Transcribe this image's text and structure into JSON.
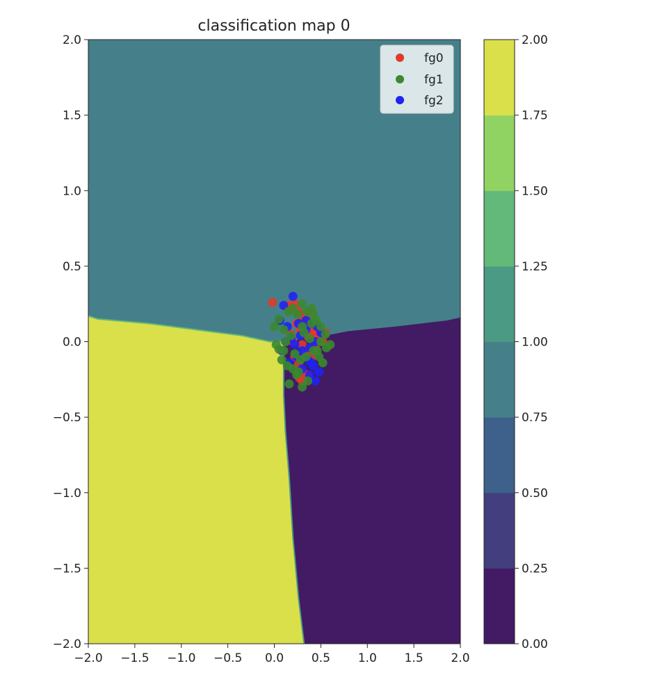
{
  "chart_data": {
    "type": "contourf+scatter",
    "title": "classification map 0",
    "xlabel": "",
    "ylabel": "",
    "xlim": [
      -2.0,
      2.0
    ],
    "ylim": [
      -2.0,
      2.0
    ],
    "x_ticks": [
      "−2.0",
      "−1.5",
      "−1.0",
      "−0.5",
      "0.0",
      "0.5",
      "1.0",
      "1.5",
      "2.0"
    ],
    "y_ticks": [
      "2.0",
      "1.5",
      "1.0",
      "0.5",
      "0.0",
      "−0.5",
      "−1.0",
      "−1.5",
      "−2.0"
    ],
    "grid": false,
    "legend_position": "top-right",
    "regions": [
      {
        "class": 1,
        "color": "#45808a",
        "region": "upper"
      },
      {
        "class": 2,
        "color": "#dae049",
        "region": "lower-left"
      },
      {
        "class": 0,
        "color": "#421b64",
        "region": "lower-right"
      }
    ],
    "boundary": {
      "upper_left": [
        [
          -2.0,
          0.17
        ],
        [
          -1.9,
          0.15
        ],
        [
          -1.35,
          0.12
        ],
        [
          -0.85,
          0.08
        ],
        [
          -0.35,
          0.04
        ],
        [
          -0.05,
          0.0
        ],
        [
          0.1,
          0.0
        ]
      ],
      "upper_right": [
        [
          0.15,
          0.0
        ],
        [
          0.3,
          0.02
        ],
        [
          0.55,
          0.04
        ],
        [
          0.8,
          0.07
        ],
        [
          1.3,
          0.1
        ],
        [
          1.85,
          0.14
        ],
        [
          2.0,
          0.16
        ]
      ],
      "lower": [
        [
          0.1,
          0.0
        ],
        [
          0.1,
          -0.35
        ],
        [
          0.12,
          -0.6
        ],
        [
          0.16,
          -0.9
        ],
        [
          0.2,
          -1.3
        ],
        [
          0.26,
          -1.7
        ],
        [
          0.32,
          -2.0
        ]
      ]
    },
    "colorbar": {
      "levels": [
        0.0,
        0.25,
        0.5,
        0.75,
        1.0,
        1.25,
        1.5,
        1.75,
        2.0
      ],
      "tick_labels": [
        "2.00",
        "1.75",
        "1.50",
        "1.25",
        "1.00",
        "0.75",
        "0.50",
        "0.25",
        "0.00"
      ],
      "colors": [
        "#421b64",
        "#433f7e",
        "#3d618a",
        "#45808a",
        "#4a9a84",
        "#62b979",
        "#91d363",
        "#dae049"
      ]
    },
    "series": [
      {
        "name": "fg0",
        "color": "#e03a2c",
        "x": [
          -0.02,
          0.15,
          0.18,
          0.22,
          0.25,
          0.28,
          0.3,
          0.33,
          0.36,
          0.4,
          0.42,
          0.45,
          0.48,
          0.5,
          0.52,
          0.55,
          0.2,
          0.3,
          0.38,
          0.44,
          0.35,
          0.28,
          0.24,
          0.32,
          0.4,
          0.26,
          0.3,
          0.36,
          0.22,
          0.34,
          0.46,
          0.18,
          0.4,
          0.3,
          0.27
        ],
        "y": [
          0.26,
          0.24,
          0.22,
          0.25,
          0.2,
          0.18,
          0.15,
          0.12,
          0.1,
          0.08,
          0.05,
          0.03,
          0.07,
          0.02,
          0.0,
          0.06,
          0.0,
          -0.02,
          -0.05,
          -0.04,
          0.04,
          0.08,
          0.12,
          -0.08,
          -0.1,
          -0.15,
          -0.2,
          -0.22,
          -0.1,
          0.16,
          0.1,
          0.05,
          0.2,
          -0.26,
          -0.24
        ]
      },
      {
        "name": "fg1",
        "color": "#3a8a2c",
        "x": [
          0.0,
          0.05,
          0.1,
          0.15,
          0.2,
          0.25,
          0.3,
          0.35,
          0.4,
          0.45,
          0.5,
          0.55,
          0.6,
          0.05,
          0.12,
          0.18,
          0.22,
          0.28,
          0.32,
          0.38,
          0.42,
          0.48,
          0.52,
          0.56,
          0.02,
          0.08,
          0.14,
          0.2,
          0.26,
          0.34,
          0.4,
          0.46,
          0.5,
          0.3,
          0.36,
          0.24,
          0.16,
          0.1,
          0.42,
          0.3
        ],
        "y": [
          0.1,
          0.15,
          0.08,
          0.2,
          0.22,
          0.18,
          0.25,
          0.2,
          0.22,
          0.14,
          0.1,
          0.05,
          -0.02,
          -0.05,
          0.0,
          0.04,
          -0.08,
          -0.12,
          0.06,
          0.02,
          -0.06,
          -0.1,
          -0.14,
          -0.04,
          -0.02,
          -0.12,
          -0.16,
          -0.18,
          -0.2,
          -0.1,
          0.12,
          -0.06,
          0.0,
          -0.3,
          -0.26,
          -0.22,
          -0.28,
          -0.06,
          0.18,
          0.1
        ]
      },
      {
        "name": "fg2",
        "color": "#1f24f2",
        "x": [
          0.2,
          0.1,
          0.06,
          0.14,
          0.26,
          0.34,
          0.4,
          0.46,
          0.5,
          0.44,
          0.38,
          0.3,
          0.24,
          0.16,
          0.08,
          0.18,
          0.28,
          0.36,
          0.42,
          0.48,
          0.3,
          0.26,
          0.38,
          0.44,
          0.4,
          0.12,
          0.22,
          0.34
        ],
        "y": [
          0.3,
          0.24,
          0.14,
          0.1,
          0.12,
          0.14,
          0.12,
          0.1,
          0.06,
          0.0,
          -0.04,
          -0.06,
          -0.1,
          -0.14,
          -0.06,
          0.02,
          0.04,
          -0.12,
          -0.16,
          -0.2,
          -0.18,
          -0.2,
          -0.22,
          -0.26,
          -0.14,
          0.0,
          -0.02,
          0.08
        ]
      }
    ]
  }
}
